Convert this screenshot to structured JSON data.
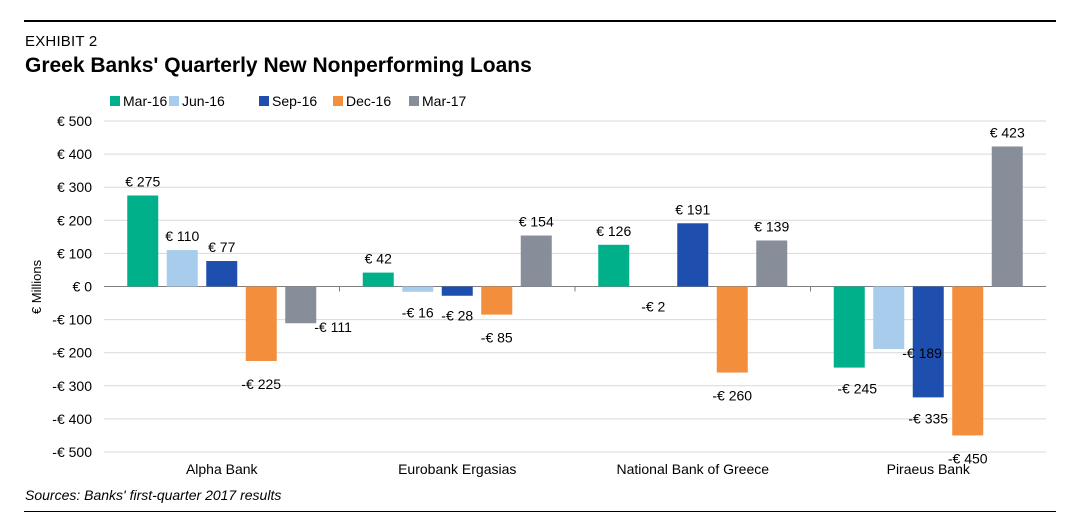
{
  "header": {
    "exhibit": "EXHIBIT 2",
    "title": "Greek Banks' Quarterly New Nonperforming Loans"
  },
  "footer": {
    "source": "Sources: Banks' first-quarter 2017 results"
  },
  "chart_data": {
    "type": "bar",
    "title": "Greek Banks' Quarterly New Nonperforming Loans",
    "xlabel": "",
    "ylabel": "€ Millions",
    "ylim": [
      -500,
      500
    ],
    "yticks": [
      500,
      400,
      300,
      200,
      100,
      0,
      -100,
      -200,
      -300,
      -400,
      -500
    ],
    "ytick_labels": [
      "€ 500",
      "€ 400",
      "€ 300",
      "€ 200",
      "€ 100",
      "€ 0",
      "-€ 100",
      "-€ 200",
      "-€ 300",
      "-€ 400",
      "-€ 500"
    ],
    "grid": true,
    "legend_position": "top-left",
    "categories": [
      "Alpha Bank",
      "Eurobank Ergasias",
      "National Bank of Greece",
      "Piraeus Bank"
    ],
    "series": [
      {
        "name": "Mar-16",
        "color": "#00B08B",
        "values": [
          275,
          42,
          126,
          -245
        ],
        "labels": [
          "€ 275",
          "€ 42",
          "€ 126",
          "-€ 245"
        ]
      },
      {
        "name": "Jun-16",
        "color": "#A8CCEC",
        "values": [
          110,
          -16,
          null,
          -189
        ],
        "labels": [
          "€ 110",
          "-€ 16",
          "",
          "-€ 189"
        ]
      },
      {
        "name": "Sep-16",
        "color": "#1F4FAE",
        "values": [
          77,
          -28,
          191,
          -335
        ],
        "labels": [
          "€ 77",
          "-€ 28",
          "€ 191",
          "-€ 335"
        ]
      },
      {
        "name": "Dec-16",
        "color": "#F28E3C",
        "values": [
          -225,
          -85,
          -260,
          -450
        ],
        "labels": [
          "-€ 225",
          "-€ 85",
          "-€ 260",
          "-€ 450"
        ]
      },
      {
        "name": "Mar-17",
        "color": "#878D99",
        "values": [
          -111,
          154,
          139,
          423
        ],
        "labels": [
          "-€ 111",
          "€ 154",
          "€ 139",
          "€ 423"
        ]
      }
    ],
    "annotations": [
      {
        "text": "-€ 2",
        "category": "National Bank of Greece"
      }
    ]
  }
}
